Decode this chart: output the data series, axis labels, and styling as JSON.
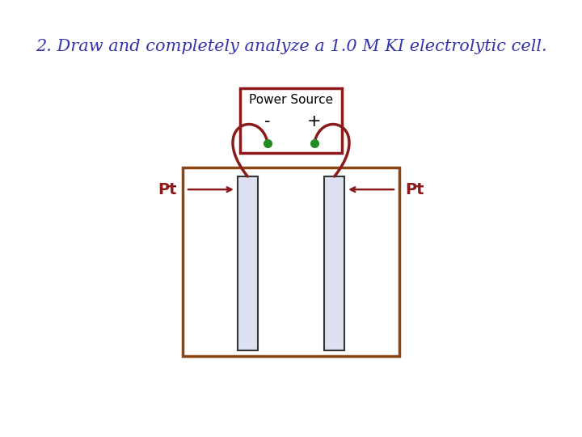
{
  "title": "2. Draw and completely analyze a 1.0 M KI electrolytic cell.",
  "title_color": "#3333aa",
  "title_fontsize": 15,
  "bg_color": "#ffffff",
  "wire_color": "#8B1A1A",
  "tank_color": "#8B4513",
  "electrode_fill": "#dce0f0",
  "electrode_edge": "#333333",
  "power_box_color": "#8B1A1A",
  "power_box_fill": "#ffffff",
  "terminal_color": "#228B22",
  "arrow_color": "#8B1A1A",
  "label_color": "#8B1A1A",
  "power_source_label": "Power Source",
  "minus_label": "-",
  "plus_label": "+",
  "pt_label": "Pt"
}
